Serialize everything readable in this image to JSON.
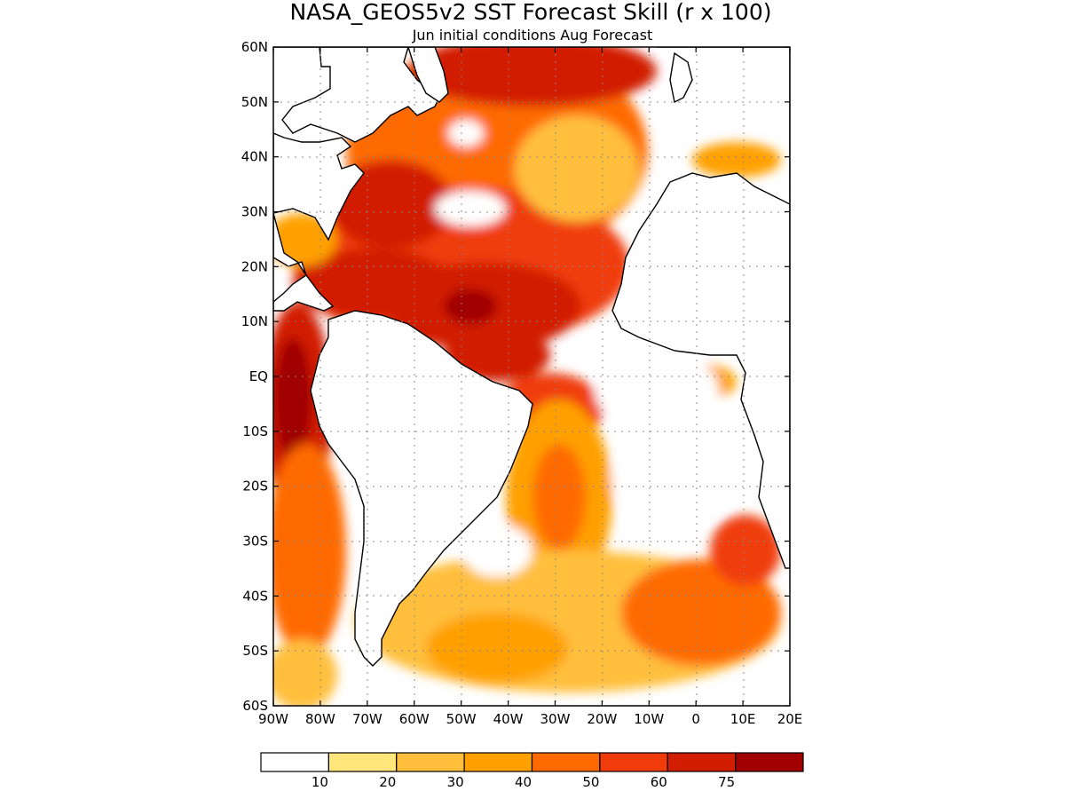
{
  "title": "NASA_GEOS5v2 SST Forecast Skill (r x 100)",
  "subtitle": "Jun initial conditions  Aug Forecast",
  "map": {
    "region": "Atlantic Ocean",
    "lon_range": [
      -90,
      20
    ],
    "lat_range": [
      -60,
      60
    ],
    "grid": true,
    "lat_ticks": [
      {
        "value": 60,
        "label": "60N"
      },
      {
        "value": 50,
        "label": "50N"
      },
      {
        "value": 40,
        "label": "40N"
      },
      {
        "value": 30,
        "label": "30N"
      },
      {
        "value": 20,
        "label": "20N"
      },
      {
        "value": 10,
        "label": "10N"
      },
      {
        "value": 0,
        "label": "EQ"
      },
      {
        "value": -10,
        "label": "10S"
      },
      {
        "value": -20,
        "label": "20S"
      },
      {
        "value": -30,
        "label": "30S"
      },
      {
        "value": -40,
        "label": "40S"
      },
      {
        "value": -50,
        "label": "50S"
      },
      {
        "value": -60,
        "label": "60S"
      }
    ],
    "lon_ticks": [
      {
        "value": -90,
        "label": "90W"
      },
      {
        "value": -80,
        "label": "80W"
      },
      {
        "value": -70,
        "label": "70W"
      },
      {
        "value": -60,
        "label": "60W"
      },
      {
        "value": -50,
        "label": "50W"
      },
      {
        "value": -40,
        "label": "40W"
      },
      {
        "value": -30,
        "label": "30W"
      },
      {
        "value": -20,
        "label": "20W"
      },
      {
        "value": -10,
        "label": "10W"
      },
      {
        "value": 0,
        "label": "0"
      },
      {
        "value": 10,
        "label": "10E"
      },
      {
        "value": 20,
        "label": "20E"
      }
    ]
  },
  "colorbar": {
    "colors": [
      "#ffffff",
      "#ffe57a",
      "#ffbf3c",
      "#ffa000",
      "#ff6a00",
      "#f03c0a",
      "#d21e00",
      "#a00000"
    ],
    "labels": [
      "10",
      "20",
      "30",
      "40",
      "50",
      "60",
      "75"
    ]
  }
}
